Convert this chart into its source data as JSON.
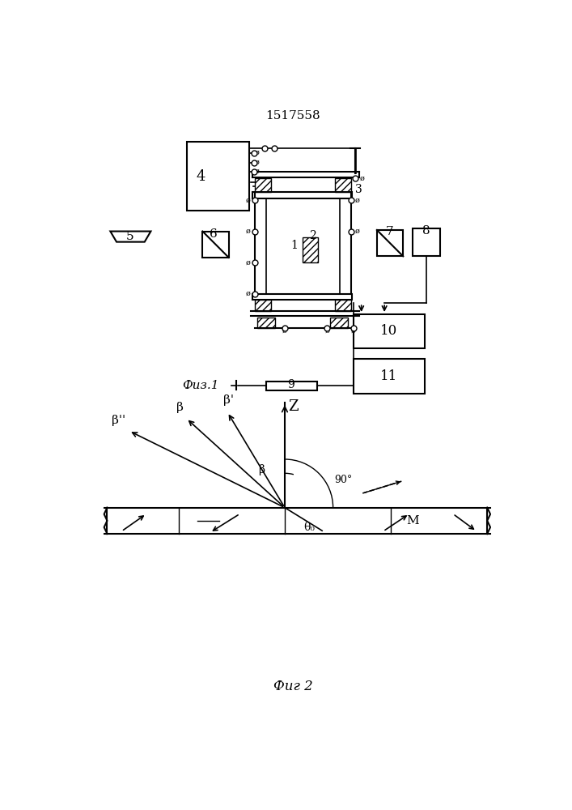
{
  "title": "1517558",
  "fig1_label": "Физ.1",
  "fig2_label": "Фиг 2",
  "background_color": "#ffffff"
}
